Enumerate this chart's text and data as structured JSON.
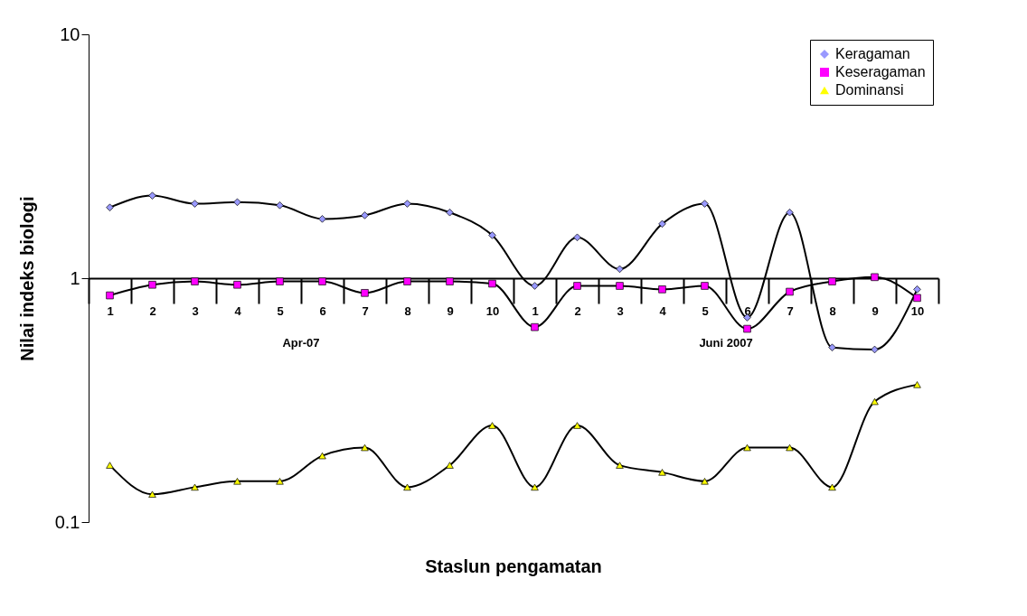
{
  "chart_data": {
    "type": "line",
    "xlabel": "Staslun pengamatan",
    "ylabel": "Nilai indeks biologi",
    "categories": [
      "1",
      "2",
      "3",
      "4",
      "5",
      "6",
      "7",
      "8",
      "9",
      "10",
      "1",
      "2",
      "3",
      "4",
      "5",
      "6",
      "7",
      "8",
      "9",
      "10"
    ],
    "series": [
      {
        "name": "Keragaman",
        "color": "#9999ff",
        "marker": "diamond",
        "values": [
          1.95,
          2.18,
          2.02,
          2.05,
          1.99,
          1.75,
          1.81,
          2.02,
          1.86,
          1.5,
          0.93,
          1.47,
          1.09,
          1.67,
          2.02,
          0.69,
          1.86,
          0.52,
          0.51,
          0.9
        ]
      },
      {
        "name": "Keseragaman",
        "color": "#ff00ff",
        "marker": "square",
        "values": [
          0.85,
          0.94,
          0.97,
          0.94,
          0.97,
          0.97,
          0.87,
          0.97,
          0.97,
          0.95,
          0.63,
          0.93,
          0.93,
          0.9,
          0.93,
          0.62,
          0.88,
          0.97,
          1.01,
          0.83
        ]
      },
      {
        "name": "Dominansi",
        "color": "#ffff00",
        "marker": "triangle",
        "values": [
          0.171,
          0.13,
          0.139,
          0.147,
          0.147,
          0.187,
          0.202,
          0.139,
          0.171,
          0.249,
          0.139,
          0.249,
          0.171,
          0.16,
          0.147,
          0.202,
          0.202,
          0.139,
          0.312,
          0.366
        ]
      }
    ],
    "log": true,
    "ylim": [
      0.1,
      10
    ],
    "yticks": [
      0.1,
      1,
      10
    ],
    "grid": false,
    "legend": "top right",
    "line_style": "solid",
    "annotations": [
      "Apr-07",
      "Juni 2007"
    ]
  }
}
